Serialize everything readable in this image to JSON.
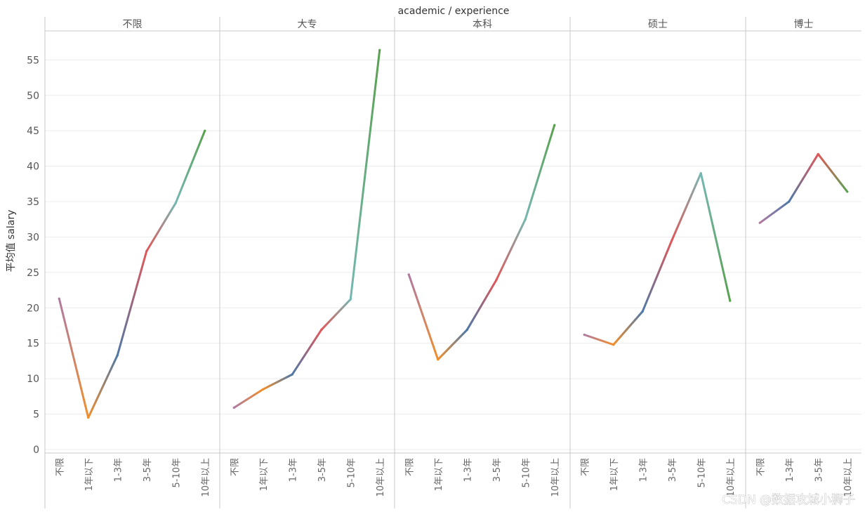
{
  "chart_data": {
    "type": "line",
    "title": "academic / experience",
    "ylabel": "平均值 salary",
    "xlabel": "",
    "ylim": [
      0,
      59
    ],
    "yticks": [
      0,
      5,
      10,
      15,
      20,
      25,
      30,
      35,
      40,
      45,
      50,
      55
    ],
    "grid": "horizontal",
    "panels": [
      {
        "name": "不限",
        "categories": [
          "不限",
          "1年以下",
          "1-3年",
          "3-5年",
          "5-10年",
          "10年以上"
        ],
        "values": [
          21.3,
          4.5,
          13.3,
          28.0,
          34.8,
          45.0
        ]
      },
      {
        "name": "大专",
        "categories": [
          "不限",
          "1年以下",
          "1-3年",
          "3-5年",
          "5-10年",
          "10年以上"
        ],
        "values": [
          5.9,
          8.5,
          10.6,
          16.9,
          21.2,
          56.4
        ]
      },
      {
        "name": "本科",
        "categories": [
          "不限",
          "1年以下",
          "1-3年",
          "3-5年",
          "5-10年",
          "10年以上"
        ],
        "values": [
          24.7,
          12.7,
          16.9,
          23.9,
          32.5,
          45.8
        ]
      },
      {
        "name": "硕士",
        "categories": [
          "不限",
          "1年以下",
          "1-3年",
          "3-5年",
          "5-10年",
          "10年以上"
        ],
        "values": [
          16.2,
          14.8,
          19.5,
          29.5,
          39.0,
          21.0
        ]
      },
      {
        "name": "博士",
        "categories": [
          "不限",
          "1-3年",
          "3-5年",
          "10年以上"
        ],
        "values": [
          32.0,
          35.0,
          41.7,
          36.4
        ]
      }
    ],
    "category_colors": {
      "不限": "#b07aa1",
      "1年以下": "#f28e2b",
      "1-3年": "#4e79a7",
      "3-5年": "#e15759",
      "5-10年": "#76b7b2",
      "10年以上": "#59a14f"
    }
  },
  "watermark": "CSDN @数据攻城小狮子"
}
